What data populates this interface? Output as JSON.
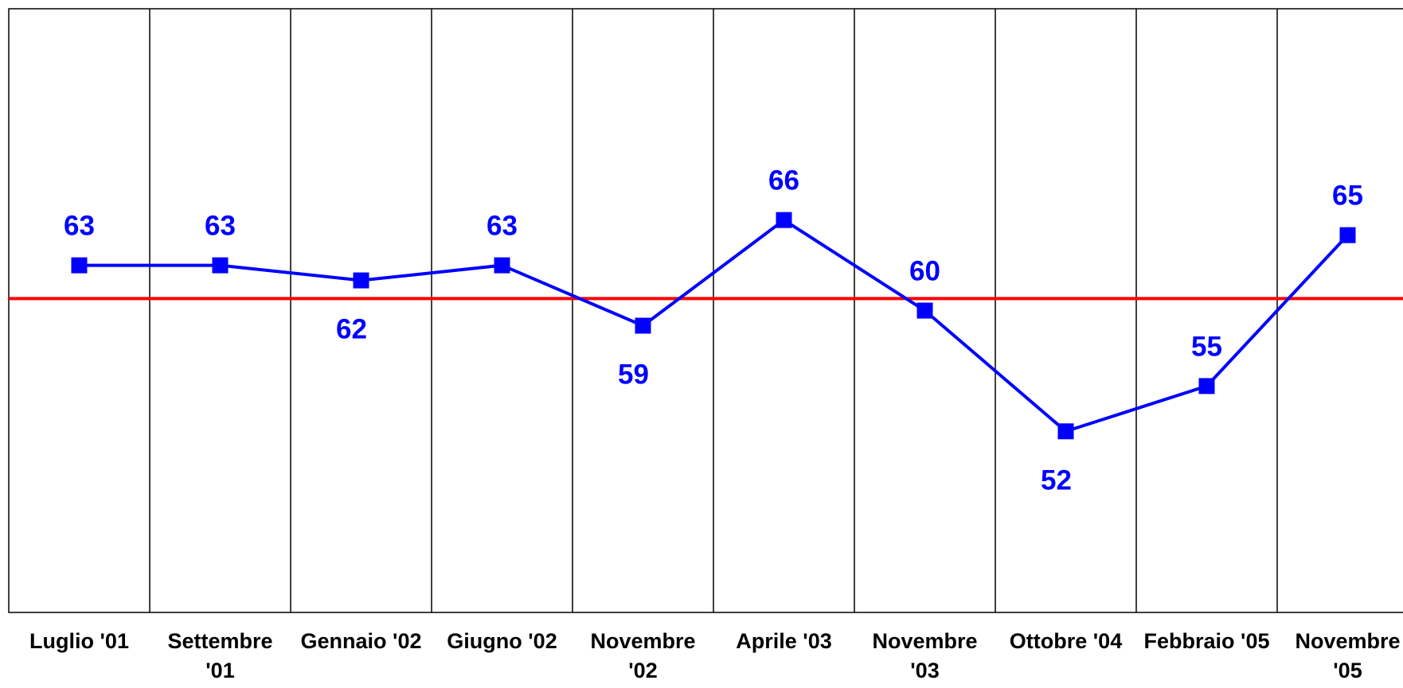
{
  "chart_data": {
    "type": "line",
    "categories": [
      "Luglio '01",
      "Settembre '01",
      "Gennaio '02",
      "Giugno '02",
      "Novembre '02",
      "Aprile '03",
      "Novembre '03",
      "Ottobre '04",
      "Febbraio '05",
      "Novembre '05"
    ],
    "series": [
      {
        "color": "#0000ff",
        "values": [
          63,
          63,
          62,
          63,
          59,
          66,
          60,
          52,
          55,
          65
        ]
      }
    ],
    "reference_line": {
      "value": 60.8,
      "color": "#ff0000"
    },
    "ylim": [
      40,
      80
    ]
  }
}
